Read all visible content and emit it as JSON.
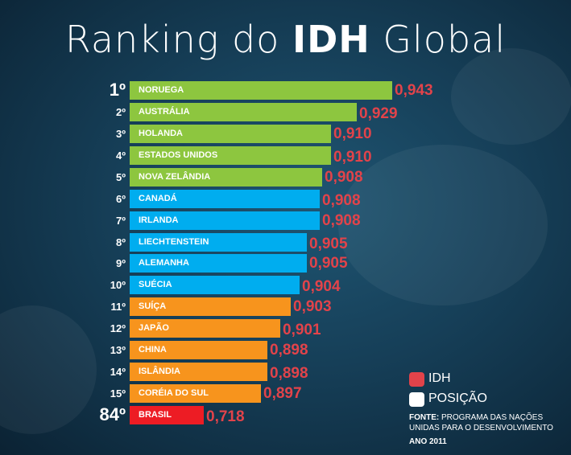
{
  "title": {
    "prefix": "Ranking do ",
    "bold": "IDH",
    "suffix": " Global"
  },
  "chart_data": {
    "type": "bar",
    "orientation": "horizontal",
    "title": "Ranking do IDH Global",
    "xlabel": "",
    "ylabel": "",
    "xlim": [
      0.65,
      0.95
    ],
    "categories": [
      "NORUEGA",
      "AUSTRÁLIA",
      "HOLANDA",
      "ESTADOS UNIDOS",
      "NOVA ZELÂNDIA",
      "CANADÁ",
      "IRLANDA",
      "LIECHTENSTEIN",
      "ALEMANHA",
      "SUÉCIA",
      "SUÍÇA",
      "JAPÃO",
      "CHINA",
      "ISLÂNDIA",
      "CORÉIA DO SUL",
      "BRASIL"
    ],
    "ranks": [
      "1º",
      "2º",
      "3º",
      "4º",
      "5º",
      "6º",
      "7º",
      "8º",
      "9º",
      "10º",
      "11º",
      "12º",
      "13º",
      "14º",
      "15º",
      "84º"
    ],
    "values": [
      0.943,
      0.929,
      0.91,
      0.91,
      0.908,
      0.908,
      0.908,
      0.905,
      0.905,
      0.904,
      0.903,
      0.901,
      0.898,
      0.898,
      0.897,
      0.718
    ],
    "value_labels": [
      "0,943",
      "0,929",
      "0,910",
      "0,910",
      "0,908",
      "0,908",
      "0,908",
      "0,905",
      "0,905",
      "0,904",
      "0,903",
      "0,901",
      "0,898",
      "0,898",
      "0,897",
      "0,718"
    ],
    "bar_groups": [
      "green",
      "green",
      "green",
      "green",
      "green",
      "blue",
      "blue",
      "blue",
      "blue",
      "blue",
      "orange",
      "orange",
      "orange",
      "orange",
      "orange",
      "red"
    ],
    "bar_lengths": [
      326,
      282,
      250,
      250,
      239,
      236,
      236,
      220,
      220,
      211,
      200,
      187,
      171,
      171,
      163,
      92
    ],
    "big_ranks": [
      0,
      15
    ]
  },
  "colors": {
    "green": "#8dc63f",
    "blue": "#00adef",
    "orange": "#f7941d",
    "red": "#ed1c24",
    "value_text": "#e2434a",
    "legend_white": "#ffffff"
  },
  "legend": {
    "idh_label": "IDH",
    "posicao_label": "POSIÇÃO"
  },
  "source": {
    "label": "FONTE:",
    "line1_rest": " PROGRAMA DAS NAÇÕES",
    "line2": "UNIDAS PARA O DESENVOLVIMENTO",
    "year": "ANO 2011"
  }
}
